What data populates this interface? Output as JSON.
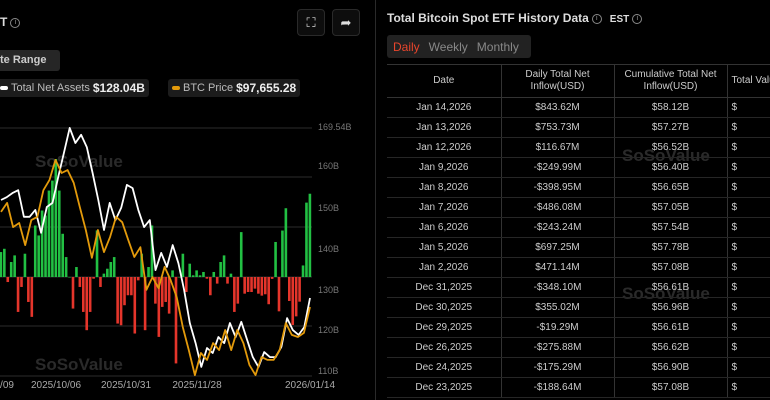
{
  "left_panel": {
    "title_fragment": "T",
    "date_range_label": "te Range",
    "fullscreen_icon": "fullscreen-icon",
    "share_icon": "share-icon",
    "legend": [
      {
        "label": "Total Net Assets",
        "value": "$128.04B",
        "color": "#ffffff"
      },
      {
        "label": "BTC Price",
        "value": "$97,655.28",
        "color": "#e39a0b"
      }
    ],
    "watermark": "SoSoValue"
  },
  "chart_data": {
    "type": "bar+line",
    "x_tick_labels": [
      "/09",
      "2025/10/06",
      "2025/10/31",
      "2025/11/28",
      "2026/01/14"
    ],
    "y_right_ticks": [
      "169.54B",
      "160B",
      "150B",
      "140B",
      "130B",
      "120B",
      "110B"
    ],
    "y_right_range": [
      110,
      169.54
    ],
    "bar_colors": {
      "positive": "#22c043",
      "negative": "#e5352b"
    },
    "daily_net_inflow_musd": [
      253,
      286,
      -51,
      152,
      219,
      -354,
      -101,
      236,
      -253,
      -404,
      522,
      421,
      674,
      623,
      876,
      977,
      1196,
      876,
      438,
      202,
      0,
      -320,
      101,
      -101,
      -354,
      -539,
      -354,
      -17,
      472,
      -101,
      34,
      84,
      152,
      202,
      -472,
      -489,
      -286,
      -185,
      -185,
      -573,
      -34,
      236,
      -539,
      101,
      522,
      -270,
      -607,
      -303,
      -253,
      -371,
      67,
      -876,
      0,
      236,
      -152,
      135,
      17,
      67,
      17,
      51,
      -17,
      -185,
      51,
      -67,
      152,
      219,
      -67,
      34,
      -354,
      -270,
      455,
      -169,
      -152,
      -152,
      -118,
      -169,
      -189,
      -175,
      -276,
      -19,
      355,
      -348,
      471,
      697,
      -243,
      -486,
      -399,
      -250,
      117,
      754,
      844
    ],
    "series": [
      {
        "name": "Total Net Assets",
        "color": "#ffffff",
        "values_b": [
          151.7,
          152.4,
          153.4,
          154.1,
          147.6,
          147.6,
          149.3,
          143.7,
          150.0,
          151.0,
          157.3,
          163.2,
          169.3,
          165.6,
          167.6,
          164.6,
          158.3,
          151.7,
          144.4,
          151.0,
          146.8,
          149.8,
          155.4,
          154.6,
          149.3,
          145.1,
          146.8,
          134.6,
          138.8,
          135.4,
          140.7,
          136.3,
          129.8,
          121.7,
          116.8,
          111.0,
          115.6,
          114.4,
          118.3,
          116.8,
          121.7,
          118.3,
          122.0,
          117.6,
          113.4,
          111.0,
          114.6,
          113.4,
          113.4,
          115.9,
          122.9,
          120.0,
          118.8,
          120.7,
          127.8
        ]
      },
      {
        "name": "BTC Price",
        "color": "#e39a0b",
        "values": [
          148.8,
          151.0,
          145.1,
          146.1,
          140.7,
          146.8,
          147.6,
          154.1,
          156.6,
          161.5,
          158.3,
          159.0,
          155.9,
          150.0,
          144.4,
          137.6,
          144.4,
          139.0,
          142.7,
          147.6,
          146.3,
          142.0,
          137.8,
          140.2,
          129.8,
          132.9,
          130.2,
          135.4,
          132.2,
          128.0,
          120.7,
          115.1,
          109.0,
          114.4,
          112.7,
          116.8,
          115.1,
          120.0,
          115.1,
          120.0,
          116.8,
          111.5,
          109.0,
          113.4,
          112.7,
          112.7,
          115.1,
          121.7,
          118.8,
          118.3,
          119.3,
          125.6
        ]
      }
    ]
  },
  "right_panel": {
    "title": "Total Bitcoin Spot ETF History Data",
    "timezone": "EST",
    "tabs": [
      "Daily",
      "Weekly",
      "Monthly"
    ],
    "active_tab": "Daily",
    "columns": [
      "Date",
      "Daily Total Net Inflow(USD)",
      "Cumulative Total Net Inflow(USD)",
      "Total Valu"
    ],
    "rows": [
      {
        "date": "Jan 14,2026",
        "daily": "$843.62M",
        "cum": "$58.12B",
        "tv": "$"
      },
      {
        "date": "Jan 13,2026",
        "daily": "$753.73M",
        "cum": "$57.27B",
        "tv": "$"
      },
      {
        "date": "Jan 12,2026",
        "daily": "$116.67M",
        "cum": "$56.52B",
        "tv": "$"
      },
      {
        "date": "Jan 9,2026",
        "daily": "-$249.99M",
        "cum": "$56.40B",
        "tv": "$"
      },
      {
        "date": "Jan 8,2026",
        "daily": "-$398.95M",
        "cum": "$56.65B",
        "tv": "$"
      },
      {
        "date": "Jan 7,2026",
        "daily": "-$486.08M",
        "cum": "$57.05B",
        "tv": "$"
      },
      {
        "date": "Jan 6,2026",
        "daily": "-$243.24M",
        "cum": "$57.54B",
        "tv": "$"
      },
      {
        "date": "Jan 5,2026",
        "daily": "$697.25M",
        "cum": "$57.78B",
        "tv": "$"
      },
      {
        "date": "Jan 2,2026",
        "daily": "$471.14M",
        "cum": "$57.08B",
        "tv": "$"
      },
      {
        "date": "Dec 31,2025",
        "daily": "-$348.10M",
        "cum": "$56.61B",
        "tv": "$"
      },
      {
        "date": "Dec 30,2025",
        "daily": "$355.02M",
        "cum": "$56.96B",
        "tv": "$"
      },
      {
        "date": "Dec 29,2025",
        "daily": "-$19.29M",
        "cum": "$56.61B",
        "tv": "$"
      },
      {
        "date": "Dec 26,2025",
        "daily": "-$275.88M",
        "cum": "$56.62B",
        "tv": "$"
      },
      {
        "date": "Dec 24,2025",
        "daily": "-$175.29M",
        "cum": "$56.90B",
        "tv": "$"
      },
      {
        "date": "Dec 23,2025",
        "daily": "-$188.64M",
        "cum": "$57.08B",
        "tv": "$"
      }
    ],
    "watermark": "SoSoValue"
  }
}
